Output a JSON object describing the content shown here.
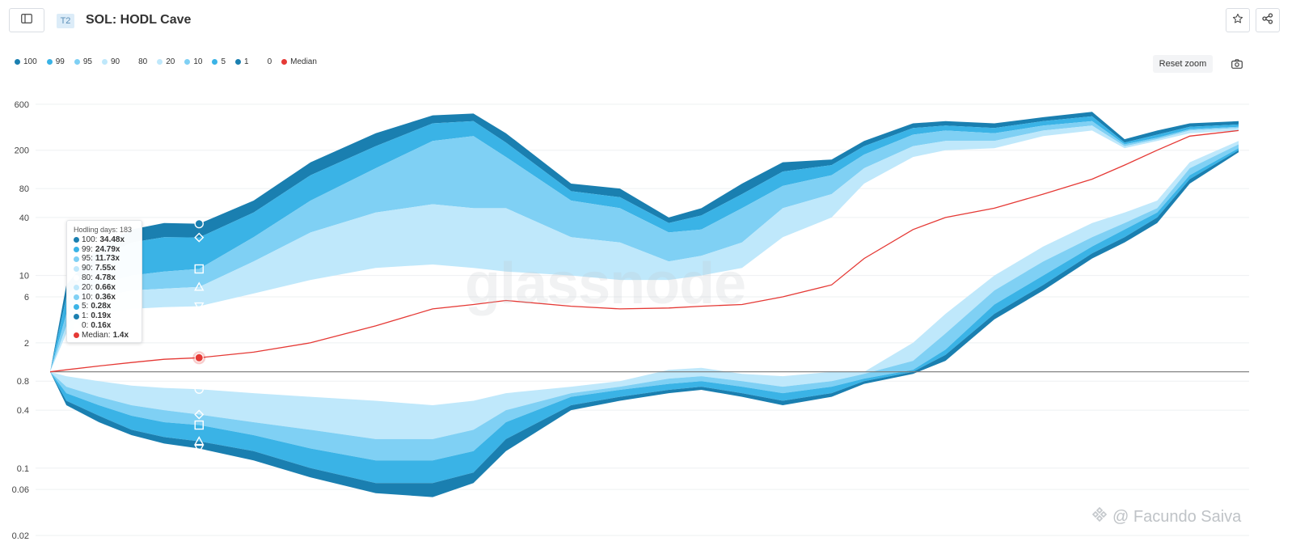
{
  "header": {
    "tier_badge": "T2",
    "title": "SOL: HODL Cave"
  },
  "toolbar": {
    "reset_zoom_label": "Reset zoom"
  },
  "colors": {
    "c100": "#1a7fb0",
    "c99": "#3ab3e6",
    "c95": "#7fd0f4",
    "c90": "#bfe8fb",
    "c80": "#ffffff",
    "c20": "#bfe8fb",
    "c10": "#7fd0f4",
    "c5": "#3ab3e6",
    "c1": "#1a7fb0",
    "c0": "#ffffff",
    "median": "#e53935"
  },
  "legend": [
    {
      "label": "100",
      "color": "#1a7fb0"
    },
    {
      "label": "99",
      "color": "#3ab3e6"
    },
    {
      "label": "95",
      "color": "#7fd0f4"
    },
    {
      "label": "90",
      "color": "#bfe8fb"
    },
    {
      "label": "80",
      "color": "#ffffff"
    },
    {
      "label": "20",
      "color": "#bfe8fb"
    },
    {
      "label": "10",
      "color": "#7fd0f4"
    },
    {
      "label": "5",
      "color": "#3ab3e6"
    },
    {
      "label": "1",
      "color": "#1a7fb0"
    },
    {
      "label": "0",
      "color": "#ffffff"
    },
    {
      "label": "Median",
      "color": "#e53935"
    }
  ],
  "tooltip": {
    "header": "Hodling days: 183",
    "rows": [
      {
        "label": "100:",
        "value": "34.48x",
        "color": "#1a7fb0"
      },
      {
        "label": "99:",
        "value": "24.79x",
        "color": "#3ab3e6"
      },
      {
        "label": "95:",
        "value": "11.73x",
        "color": "#7fd0f4"
      },
      {
        "label": "90:",
        "value": "7.55x",
        "color": "#bfe8fb"
      },
      {
        "label": "80:",
        "value": "4.78x",
        "color": "#ffffff"
      },
      {
        "label": "20:",
        "value": "0.66x",
        "color": "#bfe8fb"
      },
      {
        "label": "10:",
        "value": "0.36x",
        "color": "#7fd0f4"
      },
      {
        "label": "5:",
        "value": "0.28x",
        "color": "#3ab3e6"
      },
      {
        "label": "1:",
        "value": "0.19x",
        "color": "#1a7fb0"
      },
      {
        "label": "0:",
        "value": "0.16x",
        "color": "#ffffff"
      },
      {
        "label": "Median:",
        "value": "1.4x",
        "color": "#e53935"
      }
    ]
  },
  "watermark": "glassnode",
  "attribution": "@ Facundo Saiva",
  "chart_data": {
    "type": "area",
    "title": "SOL: HODL Cave",
    "xlabel": "",
    "ylabel": "",
    "y_scale": "log",
    "ylim": [
      0.02,
      800
    ],
    "y_ticks": [
      600,
      200,
      80,
      40,
      10,
      6,
      2,
      0.8,
      0.4,
      0.1,
      0.06,
      0.02
    ],
    "y_tick_labels": [
      "600",
      "200",
      "80",
      "40",
      "10",
      "6",
      "2",
      "0.8",
      "0.4",
      "0.1",
      "0.06",
      "0.02"
    ],
    "x": [
      0,
      20,
      60,
      100,
      140,
      183,
      250,
      320,
      400,
      470,
      520,
      560,
      640,
      700,
      760,
      800,
      850,
      900,
      960,
      1000,
      1060,
      1100,
      1160,
      1220,
      1280,
      1320,
      1360,
      1400,
      1460
    ],
    "baseline": 1,
    "series": [
      {
        "name": "100",
        "values": [
          1,
          8,
          20,
          30,
          35,
          34.5,
          60,
          150,
          300,
          460,
          480,
          300,
          90,
          80,
          40,
          50,
          90,
          150,
          160,
          250,
          380,
          400,
          380,
          440,
          500,
          260,
          320,
          380,
          400
        ]
      },
      {
        "name": "99",
        "values": [
          1,
          6,
          15,
          22,
          25,
          24.8,
          45,
          110,
          220,
          380,
          400,
          240,
          75,
          65,
          35,
          42,
          70,
          120,
          140,
          220,
          340,
          360,
          340,
          400,
          450,
          240,
          290,
          350,
          370
        ]
      },
      {
        "name": "95",
        "values": [
          1,
          4,
          8,
          10,
          11,
          11.7,
          25,
          60,
          130,
          250,
          280,
          170,
          60,
          50,
          28,
          30,
          50,
          85,
          110,
          180,
          290,
          320,
          300,
          360,
          400,
          230,
          270,
          330,
          350
        ]
      },
      {
        "name": "90",
        "values": [
          1,
          3,
          6,
          7,
          7.3,
          7.6,
          14,
          28,
          45,
          55,
          50,
          50,
          25,
          22,
          14,
          16,
          22,
          50,
          70,
          130,
          220,
          250,
          250,
          320,
          360,
          220,
          260,
          320,
          340
        ]
      },
      {
        "name": "80",
        "values": [
          1,
          2.5,
          4,
          4.5,
          4.7,
          4.8,
          6.5,
          9,
          12,
          13,
          12,
          11,
          10,
          9,
          9,
          10,
          12,
          25,
          40,
          90,
          170,
          200,
          210,
          280,
          320,
          210,
          250,
          300,
          320
        ]
      },
      {
        "name": "Median",
        "values": [
          1,
          1.05,
          1.15,
          1.25,
          1.35,
          1.4,
          1.6,
          2,
          3,
          4.5,
          5,
          5.5,
          4.8,
          4.5,
          4.6,
          4.8,
          5,
          6,
          8,
          15,
          30,
          40,
          50,
          70,
          100,
          140,
          200,
          280,
          320
        ]
      },
      {
        "name": "20",
        "values": [
          1,
          0.9,
          0.8,
          0.72,
          0.68,
          0.66,
          0.6,
          0.55,
          0.5,
          0.45,
          0.5,
          0.6,
          0.7,
          0.8,
          1.05,
          1.1,
          0.95,
          0.9,
          1.0,
          1.0,
          2,
          4,
          10,
          20,
          35,
          45,
          60,
          150,
          250
        ]
      },
      {
        "name": "10",
        "values": [
          1,
          0.7,
          0.55,
          0.45,
          0.4,
          0.36,
          0.3,
          0.25,
          0.2,
          0.2,
          0.25,
          0.4,
          0.6,
          0.7,
          0.85,
          0.9,
          0.8,
          0.7,
          0.8,
          0.95,
          1.3,
          2.5,
          7,
          14,
          25,
          35,
          50,
          130,
          230
        ]
      },
      {
        "name": "5",
        "values": [
          1,
          0.6,
          0.45,
          0.35,
          0.3,
          0.28,
          0.22,
          0.16,
          0.12,
          0.12,
          0.15,
          0.3,
          0.55,
          0.65,
          0.75,
          0.8,
          0.7,
          0.6,
          0.7,
          0.85,
          1.05,
          1.7,
          5,
          10,
          20,
          30,
          45,
          110,
          210
        ]
      },
      {
        "name": "1",
        "values": [
          1,
          0.5,
          0.35,
          0.25,
          0.21,
          0.19,
          0.15,
          0.1,
          0.07,
          0.07,
          0.09,
          0.2,
          0.45,
          0.55,
          0.65,
          0.7,
          0.6,
          0.5,
          0.6,
          0.8,
          1,
          1.5,
          4,
          8,
          17,
          25,
          40,
          100,
          200
        ]
      },
      {
        "name": "0",
        "values": [
          1,
          0.45,
          0.3,
          0.22,
          0.18,
          0.16,
          0.12,
          0.08,
          0.055,
          0.05,
          0.07,
          0.15,
          0.4,
          0.5,
          0.6,
          0.65,
          0.55,
          0.45,
          0.55,
          0.75,
          0.95,
          1.3,
          3.5,
          7,
          15,
          22,
          35,
          90,
          190
        ]
      }
    ]
  }
}
